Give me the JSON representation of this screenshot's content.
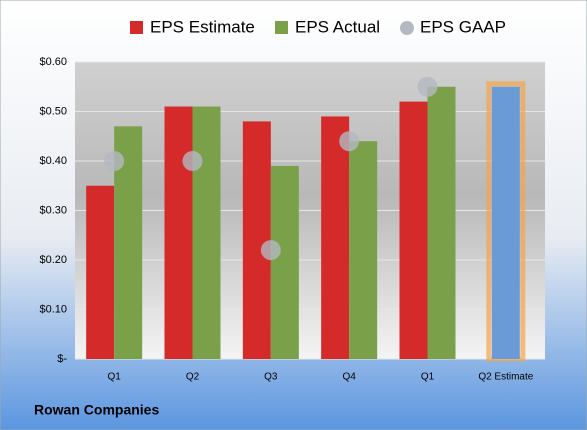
{
  "chart_data": {
    "type": "bar",
    "categories": [
      "Q1",
      "Q2",
      "Q3",
      "Q4",
      "Q1",
      "Q2 Estimate"
    ],
    "series": [
      {
        "name": "EPS Estimate",
        "color": "#d42a2a",
        "values": [
          0.35,
          0.51,
          0.48,
          0.49,
          0.52,
          null
        ]
      },
      {
        "name": "EPS Actual",
        "color": "#7ba04a",
        "values": [
          0.47,
          0.51,
          0.39,
          0.44,
          0.55,
          null
        ]
      },
      {
        "name": "EPS GAAP",
        "color": "#b4b8c0",
        "marker": "circle",
        "values": [
          0.4,
          0.4,
          0.22,
          0.44,
          0.55,
          null
        ]
      }
    ],
    "highlight_values": [
      null,
      null,
      null,
      null,
      null,
      0.55
    ],
    "highlight_color": "#6b9bd6",
    "ylim": [
      0,
      0.6
    ],
    "yticks": [
      {
        "value": 0,
        "label": "$-"
      },
      {
        "value": 0.1,
        "label": "$0.10"
      },
      {
        "value": 0.2,
        "label": "$0.20"
      },
      {
        "value": 0.3,
        "label": "$0.30"
      },
      {
        "value": 0.4,
        "label": "$0.40"
      },
      {
        "value": 0.5,
        "label": "$0.50"
      },
      {
        "value": 0.6,
        "label": "$0.60"
      }
    ],
    "grid": true,
    "footer": "Rowan Companies"
  }
}
